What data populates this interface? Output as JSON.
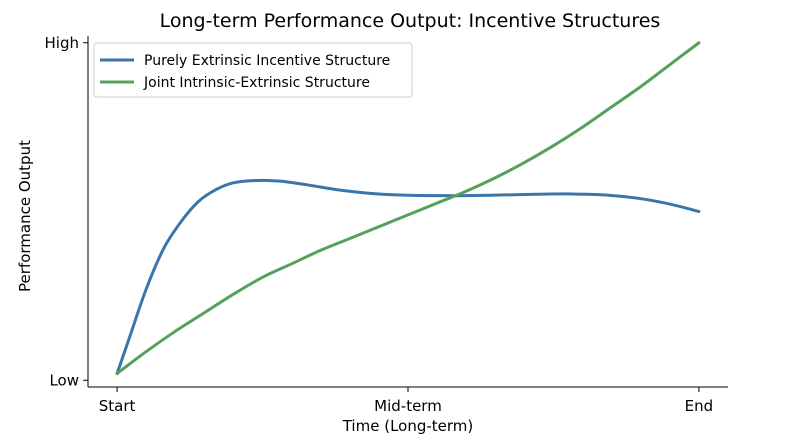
{
  "chart_data": {
    "type": "line",
    "title": "Long-term Performance Output: Incentive Structures",
    "xlabel": "Time (Long-term)",
    "ylabel": "Performance Output",
    "x_ticks": [
      {
        "value": 0,
        "label": "Start"
      },
      {
        "value": 0.5,
        "label": "Mid-term"
      },
      {
        "value": 1,
        "label": "End"
      }
    ],
    "y_ticks": [
      {
        "value": 0,
        "label": "Low"
      },
      {
        "value": 1,
        "label": "High"
      }
    ],
    "xlim": [
      -0.05,
      1.05
    ],
    "ylim": [
      -0.02,
      1.02
    ],
    "grid": false,
    "legend_position": "top-left",
    "series": [
      {
        "name": "Purely Extrinsic Incentive Structure",
        "color": "#3a76aa",
        "x": [
          0,
          0.02,
          0.05,
          0.08,
          0.11,
          0.14,
          0.17,
          0.2,
          0.24,
          0.28,
          0.33,
          0.38,
          0.44,
          0.5,
          0.55,
          0.6,
          0.66,
          0.72,
          0.78,
          0.84,
          0.9,
          0.95,
          1.0
        ],
        "values": [
          0.02,
          0.12,
          0.27,
          0.39,
          0.47,
          0.53,
          0.565,
          0.585,
          0.592,
          0.59,
          0.578,
          0.564,
          0.553,
          0.548,
          0.547,
          0.547,
          0.549,
          0.551,
          0.552,
          0.549,
          0.538,
          0.522,
          0.5
        ]
      },
      {
        "name": "Joint Intrinsic-Extrinsic Structure",
        "color": "#55a05a",
        "x": [
          0,
          0.05,
          0.1,
          0.15,
          0.2,
          0.25,
          0.3,
          0.35,
          0.4,
          0.45,
          0.5,
          0.55,
          0.6,
          0.65,
          0.7,
          0.75,
          0.8,
          0.85,
          0.9,
          0.95,
          1.0
        ],
        "values": [
          0.02,
          0.085,
          0.145,
          0.2,
          0.255,
          0.305,
          0.345,
          0.385,
          0.42,
          0.455,
          0.49,
          0.525,
          0.56,
          0.6,
          0.645,
          0.695,
          0.75,
          0.81,
          0.87,
          0.935,
          1.0
        ]
      }
    ]
  }
}
